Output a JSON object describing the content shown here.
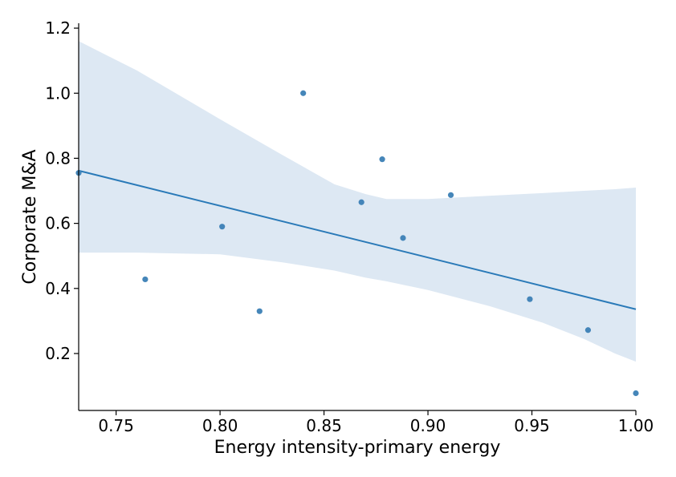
{
  "chart_data": {
    "type": "scatter",
    "title": "",
    "xlabel": "Energy intensity-primary energy",
    "ylabel": "Corporate M&A",
    "xlim": [
      0.732,
      1.0
    ],
    "ylim": [
      0.025,
      1.215
    ],
    "x_ticks": [
      0.75,
      0.8,
      0.85,
      0.9,
      0.95,
      1.0
    ],
    "x_tick_labels": [
      "0.75",
      "0.80",
      "0.85",
      "0.90",
      "0.95",
      "1.00"
    ],
    "y_ticks": [
      0.2,
      0.4,
      0.6,
      0.8,
      1.0,
      1.2
    ],
    "y_tick_labels": [
      "0.2",
      "0.4",
      "0.6",
      "0.8",
      "1.0",
      "1.2"
    ],
    "grid": false,
    "legend": "none",
    "colors": {
      "points": "#3b7fb5",
      "line": "#2a7ab8",
      "band": "#dde8f3"
    },
    "points": [
      {
        "x": 0.732,
        "y": 0.755
      },
      {
        "x": 0.764,
        "y": 0.428
      },
      {
        "x": 0.801,
        "y": 0.59
      },
      {
        "x": 0.819,
        "y": 0.33
      },
      {
        "x": 0.84,
        "y": 1.0
      },
      {
        "x": 0.868,
        "y": 0.665
      },
      {
        "x": 0.878,
        "y": 0.797
      },
      {
        "x": 0.888,
        "y": 0.555
      },
      {
        "x": 0.911,
        "y": 0.687
      },
      {
        "x": 0.949,
        "y": 0.367
      },
      {
        "x": 0.977,
        "y": 0.272
      },
      {
        "x": 1.0,
        "y": 0.078
      }
    ],
    "regression_line": {
      "x": [
        0.732,
        1.0
      ],
      "y": [
        0.762,
        0.336
      ]
    },
    "confidence_band": {
      "x": [
        0.732,
        0.76,
        0.8,
        0.83,
        0.855,
        0.87,
        0.88,
        0.9,
        0.93,
        0.955,
        0.975,
        0.99,
        1.0
      ],
      "upper": [
        1.16,
        1.07,
        0.92,
        0.81,
        0.72,
        0.69,
        0.675,
        0.675,
        0.685,
        0.693,
        0.7,
        0.705,
        0.71
      ],
      "lower": [
        0.51,
        0.51,
        0.505,
        0.48,
        0.455,
        0.433,
        0.422,
        0.395,
        0.345,
        0.295,
        0.245,
        0.2,
        0.175
      ]
    }
  }
}
